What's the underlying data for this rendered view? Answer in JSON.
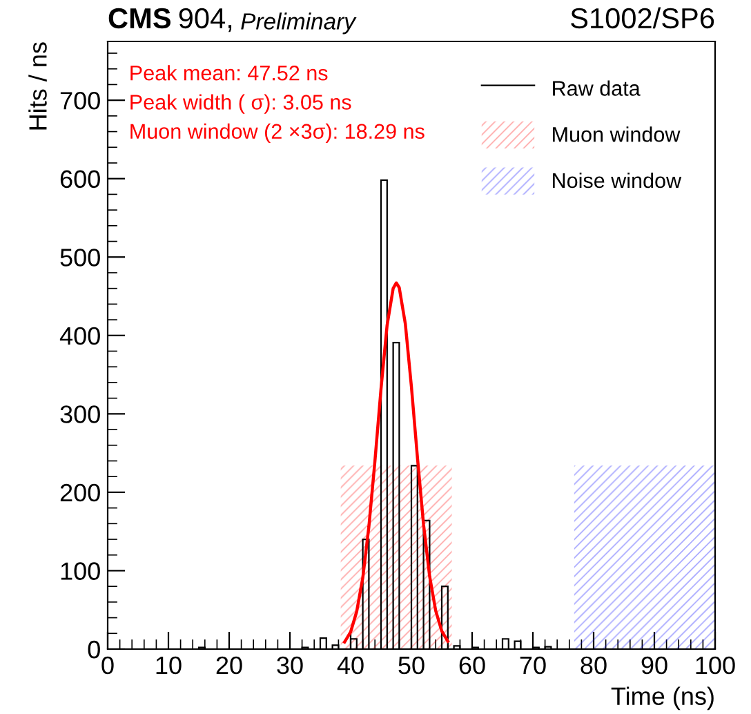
{
  "chart_data": {
    "type": "histogram",
    "title": "CMS 904, Preliminary",
    "subtitle": "S1002/SP6",
    "xlabel": "Time (ns)",
    "ylabel": "Hits / ns",
    "annotations": [
      "Peak mean: 47.52 ns",
      "Peak width ( σ): 3.05 ns",
      "Muon window (2 ×3σ): 18.29 ns"
    ],
    "series": [
      {
        "type": "area",
        "name": "Muon window",
        "color": "#ff0000",
        "x": [
          38.37,
          56.66
        ],
        "values": [
          234,
          234
        ]
      },
      {
        "type": "area",
        "name": "Noise window",
        "color": "#0000ff",
        "x": [
          76.8,
          100
        ],
        "values": [
          234,
          234
        ]
      },
      {
        "name": "Raw data",
        "color": "#000000",
        "bins": [
          0,
          1,
          2,
          3,
          4,
          5,
          6,
          7,
          8,
          9,
          10,
          11,
          12,
          13,
          14,
          15,
          16,
          17,
          18,
          19,
          20,
          21,
          22,
          23,
          24,
          25,
          26,
          27,
          28,
          29,
          30,
          31,
          32,
          33,
          34,
          35,
          36,
          37,
          38,
          39,
          40,
          41,
          42,
          43,
          44,
          45,
          46,
          47,
          48,
          49,
          50,
          51,
          52,
          53,
          54,
          55,
          56,
          57,
          58,
          59,
          60,
          61,
          62,
          63,
          64,
          65,
          66,
          67,
          68,
          69,
          70,
          71,
          72,
          73,
          74,
          75,
          76,
          77,
          78,
          79,
          80,
          81,
          82,
          83,
          84,
          85,
          86,
          87,
          88,
          89,
          90,
          91,
          92,
          93,
          94,
          95,
          96,
          97,
          98,
          99,
          100
        ],
        "values": [
          0,
          0,
          0,
          0,
          0,
          0,
          0,
          0,
          0,
          0,
          0,
          0,
          0,
          0,
          0,
          2,
          0,
          0,
          0,
          0,
          0,
          0,
          0,
          0,
          0,
          0,
          0,
          0,
          0,
          0,
          0,
          0,
          2,
          0,
          0,
          14,
          0,
          5,
          0,
          0,
          13,
          0,
          140,
          0,
          0,
          598,
          0,
          391,
          0,
          0,
          234,
          0,
          164,
          0,
          0,
          80,
          0,
          4,
          0,
          0,
          2,
          0,
          0,
          0,
          0,
          13,
          0,
          10,
          0,
          0,
          2,
          0,
          3,
          0,
          0,
          0,
          0,
          0,
          0,
          0,
          0,
          0,
          0,
          0,
          0,
          0,
          0,
          0,
          0,
          0,
          0,
          0,
          0,
          0,
          0,
          0,
          0,
          0,
          0,
          0
        ]
      },
      {
        "type": "line",
        "color": "#ff0000",
        "x": [
          39,
          40,
          41,
          42,
          43,
          44,
          45,
          46,
          47,
          47.52,
          48,
          49,
          50,
          51,
          52,
          53,
          54,
          55,
          56
        ],
        "values": [
          9,
          22,
          48,
          91,
          156,
          240,
          332,
          413,
          460,
          467,
          461,
          415,
          335,
          244,
          159,
          93,
          49,
          23,
          10
        ]
      }
    ],
    "xlim": [
      0,
      100
    ],
    "ylim": [
      0,
      775
    ],
    "xticks": [
      0,
      10,
      20,
      30,
      40,
      50,
      60,
      70,
      80,
      90,
      100
    ],
    "yticks": [
      0,
      100,
      200,
      300,
      400,
      500,
      600,
      700
    ],
    "grid": false,
    "legend": "top right"
  }
}
